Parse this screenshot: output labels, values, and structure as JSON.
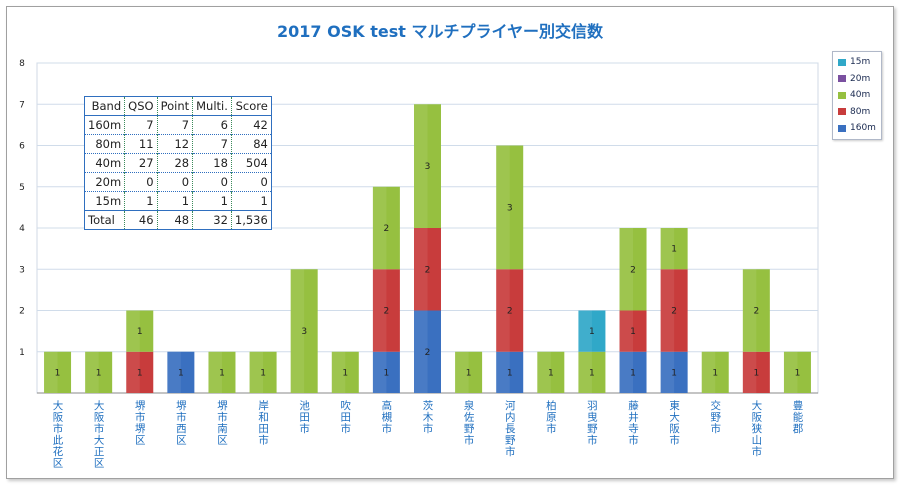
{
  "chart_data": {
    "type": "bar",
    "stacked": true,
    "title": "2017 OSK test マルチプライヤー別交信数",
    "xlabel": "",
    "ylabel": "",
    "ylim": [
      0,
      8
    ],
    "yticks": [
      1,
      2,
      3,
      4,
      5,
      6,
      7,
      8
    ],
    "grid": true,
    "legend_position": "right",
    "categories": [
      "大阪市此花区",
      "大阪市大正区",
      "堺市堺区",
      "堺市西区",
      "堺市南区",
      "岸和田市",
      "池田市",
      "吹田市",
      "高槻市",
      "茨木市",
      "泉佐野市",
      "河内長野市",
      "柏原市",
      "羽曳野市",
      "藤井寺市",
      "東大阪市",
      "交野市",
      "大阪狭山市",
      "豊能郡"
    ],
    "series": [
      {
        "name": "160m",
        "color": "#3a70c0",
        "values": [
          0,
          0,
          0,
          1,
          0,
          0,
          0,
          0,
          1,
          2,
          0,
          1,
          0,
          0,
          1,
          1,
          0,
          0,
          0
        ]
      },
      {
        "name": "80m",
        "color": "#c83c3c",
        "values": [
          0,
          0,
          1,
          0,
          0,
          0,
          0,
          0,
          2,
          2,
          0,
          2,
          0,
          0,
          1,
          2,
          0,
          1,
          0
        ]
      },
      {
        "name": "40m",
        "color": "#96c040",
        "values": [
          1,
          1,
          1,
          0,
          1,
          1,
          3,
          1,
          2,
          3,
          1,
          3,
          1,
          1,
          2,
          1,
          1,
          2,
          1
        ]
      },
      {
        "name": "20m",
        "color": "#7a50a0",
        "values": [
          0,
          0,
          0,
          0,
          0,
          0,
          0,
          0,
          0,
          0,
          0,
          0,
          0,
          0,
          0,
          0,
          0,
          0,
          0
        ]
      },
      {
        "name": "15m",
        "color": "#30a8c8",
        "values": [
          0,
          0,
          0,
          0,
          0,
          0,
          0,
          0,
          0,
          0,
          0,
          0,
          0,
          1,
          0,
          0,
          0,
          0,
          0
        ]
      }
    ],
    "legend_order": [
      "15m",
      "20m",
      "40m",
      "80m",
      "160m"
    ],
    "table": {
      "header": [
        "Band",
        "QSO",
        "Point",
        "Multi.",
        "Score"
      ],
      "rows": [
        [
          "160m",
          "7",
          "7",
          "6",
          "42"
        ],
        [
          "80m",
          "11",
          "12",
          "7",
          "84"
        ],
        [
          "40m",
          "27",
          "28",
          "18",
          "504"
        ],
        [
          "20m",
          "0",
          "0",
          "0",
          "0"
        ],
        [
          "15m",
          "1",
          "1",
          "1",
          "1"
        ]
      ],
      "total": [
        "Total",
        "46",
        "48",
        "32",
        "1,536"
      ]
    }
  }
}
